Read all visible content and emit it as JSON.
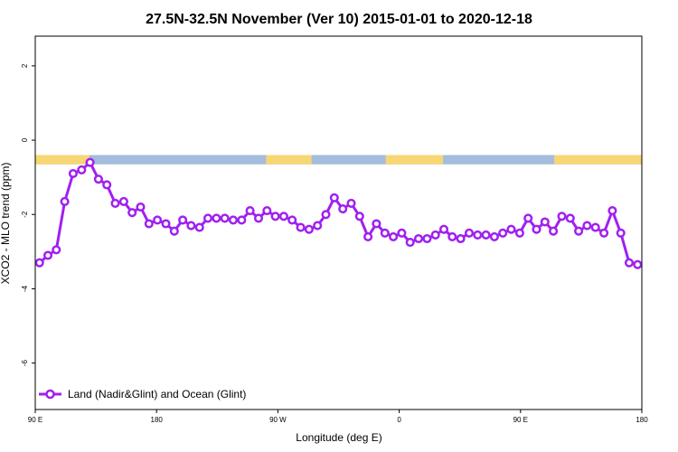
{
  "chart_data": {
    "type": "line",
    "title": "27.5N-32.5N November (Ver 10)   2015-01-01 to 2020-12-18",
    "xlabel": "Longitude (deg E)",
    "ylabel": "XCO2 - MLO trend (ppm)",
    "xlim": [
      90,
      450
    ],
    "ylim": [
      -7.25,
      2.8
    ],
    "x_ticks": [
      {
        "value": 90,
        "label": "90 E"
      },
      {
        "value": 162,
        "label": "180"
      },
      {
        "value": 234,
        "label": "90 W"
      },
      {
        "value": 306,
        "label": "0"
      },
      {
        "value": 378,
        "label": "90 E"
      },
      {
        "value": 450,
        "label": "180"
      }
    ],
    "y_ticks": [
      {
        "value": 2,
        "label": "2"
      },
      {
        "value": 0,
        "label": "0"
      },
      {
        "value": -2,
        "label": "-2"
      },
      {
        "value": -4,
        "label": "-4"
      },
      {
        "value": -6,
        "label": "-6"
      }
    ],
    "series": [
      {
        "name": "Land (Nadir&Glint) and Ocean (Glint)",
        "color": "#a020f0",
        "x": [
          92.5,
          97.5,
          102.5,
          107.5,
          112.5,
          117.5,
          122.5,
          127.5,
          132.5,
          137.5,
          142.5,
          147.5,
          152.5,
          157.5,
          162.5,
          167.5,
          172.5,
          177.5,
          182.5,
          187.5,
          192.5,
          197.5,
          202.5,
          207.5,
          212.5,
          217.5,
          222.5,
          227.5,
          232.5,
          237.5,
          242.5,
          247.5,
          252.5,
          257.5,
          262.5,
          267.5,
          272.5,
          277.5,
          282.5,
          287.5,
          292.5,
          297.5,
          302.5,
          307.5,
          312.5,
          317.5,
          322.5,
          327.5,
          332.5,
          337.5,
          342.5,
          347.5,
          352.5,
          357.5,
          362.5,
          367.5,
          372.5,
          377.5,
          382.5,
          387.5,
          392.5,
          397.5,
          402.5,
          407.5,
          412.5,
          417.5,
          422.5,
          427.5,
          432.5,
          437.5,
          442.5,
          447.5
        ],
        "y": [
          -3.3,
          -3.1,
          -2.95,
          -1.65,
          -0.9,
          -0.8,
          -0.6,
          -1.05,
          -1.2,
          -1.7,
          -1.65,
          -1.95,
          -1.8,
          -2.25,
          -2.15,
          -2.25,
          -2.45,
          -2.15,
          -2.3,
          -2.35,
          -2.1,
          -2.1,
          -2.1,
          -2.15,
          -2.15,
          -1.9,
          -2.1,
          -1.9,
          -2.05,
          -2.05,
          -2.15,
          -2.35,
          -2.4,
          -2.3,
          -2.0,
          -1.55,
          -1.85,
          -1.7,
          -2.05,
          -2.6,
          -2.25,
          -2.5,
          -2.6,
          -2.5,
          -2.75,
          -2.65,
          -2.65,
          -2.55,
          -2.4,
          -2.6,
          -2.65,
          -2.5,
          -2.55,
          -2.55,
          -2.6,
          -2.5,
          -2.4,
          -2.5,
          -2.1,
          -2.4,
          -2.2,
          -2.45,
          -2.05,
          -2.1,
          -2.45,
          -2.3,
          -2.35,
          -2.5,
          -1.9,
          -2.5,
          -3.3,
          -3.35
        ]
      }
    ],
    "legend_position": "bottom-left",
    "grid": false,
    "surface_band": {
      "y_range": [
        -0.65,
        -0.4
      ],
      "land_color": "#f7d774",
      "ocean_color": "#a3bddc",
      "land_intervals": [
        [
          90,
          122
        ],
        [
          227,
          254
        ],
        [
          298,
          332
        ],
        [
          398,
          450
        ]
      ]
    }
  }
}
